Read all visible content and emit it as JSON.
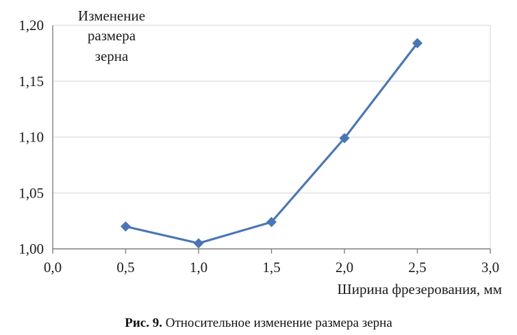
{
  "chart_data": {
    "type": "line",
    "x": [
      0.5,
      1.0,
      1.5,
      2.0,
      2.5
    ],
    "values": [
      1.02,
      1.005,
      1.024,
      1.099,
      1.184
    ],
    "xlim": [
      0.0,
      3.0
    ],
    "ylim": [
      1.0,
      1.2
    ],
    "xticks": [
      "0,0",
      "0,5",
      "1,0",
      "1,5",
      "2,0",
      "2,5",
      "3,0"
    ],
    "yticks": [
      "1,00",
      "1,05",
      "1,10",
      "1,15",
      "1,20"
    ],
    "ylabel_lines": [
      "Изменение",
      "размера",
      "зерна"
    ],
    "xlabel": "Ширина фрезерования, мм",
    "grid": "horizontal",
    "line_color": "#4a76b4",
    "marker_color": "#4a76b4",
    "marker": "diamond"
  },
  "caption": {
    "prefix": "Рис. 9.",
    "text": " Относительное изменение размера зерна"
  }
}
